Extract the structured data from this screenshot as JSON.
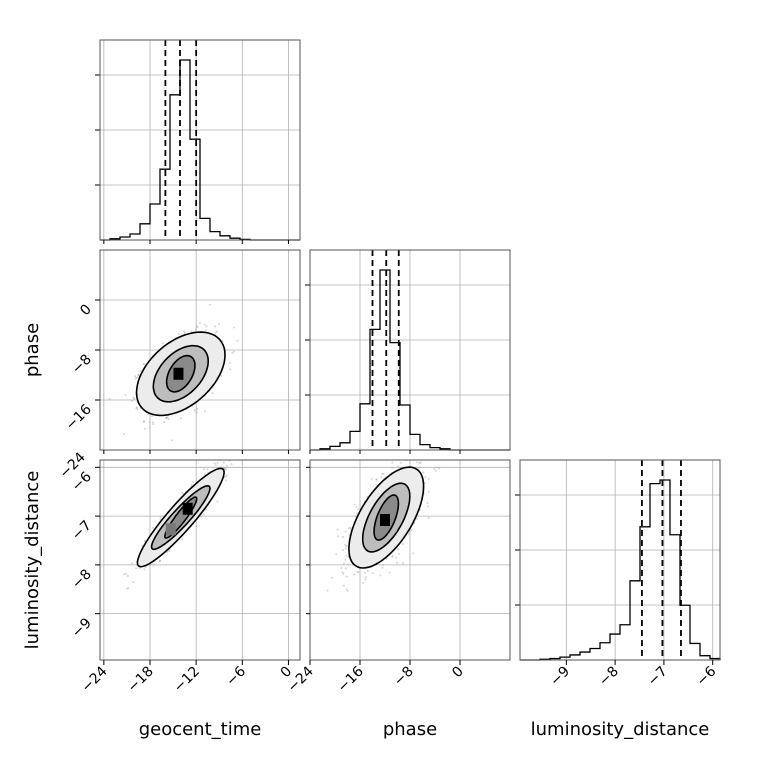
{
  "chart_data": {
    "type": "corner",
    "parameters": [
      "geocent_time",
      "phase",
      "luminosity_distance"
    ],
    "axis_labels": {
      "x": [
        "geocent_time",
        "phase",
        "luminosity_distance"
      ],
      "y": [
        "phase",
        "luminosity_distance"
      ]
    },
    "ranges": {
      "geocent_time": [
        -24.5,
        1.5
      ],
      "phase": [
        -24,
        8
      ],
      "luminosity_distance": [
        -9.95,
        -5.85
      ]
    },
    "ticks": {
      "geocent_time": [
        -24,
        -18,
        -12,
        -6,
        0
      ],
      "phase": [
        -24,
        -16,
        -8,
        0
      ],
      "luminosity_distance": [
        -9,
        -8,
        -7,
        -6
      ]
    },
    "tick_labels": {
      "geocent_time": [
        "−24",
        "−18",
        "−12",
        "−6",
        "0"
      ],
      "phase": [
        "−24",
        "−16",
        "−8",
        "0"
      ],
      "luminosity_distance": [
        "−9",
        "−8",
        "−7",
        "−6"
      ]
    },
    "y_tick_labels": {
      "phase": [
        "−16",
        "−8",
        "0"
      ],
      "luminosity_distance": [
        "−9",
        "−8",
        "−7",
        "−6"
      ],
      "phase_corner": "−24"
    },
    "grid": true,
    "line_color": "#000000",
    "scatter_color": "#888888",
    "quantiles": {
      "geocent_time": [
        -16.0,
        -14.1,
        -12.0
      ],
      "phase": [
        -14.0,
        -11.8,
        -9.8
      ],
      "luminosity_distance": [
        -7.45,
        -7.03,
        -6.65
      ]
    },
    "histograms": {
      "geocent_time": {
        "edges": [
          -24.5,
          -23.2,
          -21.9,
          -20.6,
          -19.3,
          -18.0,
          -16.7,
          -15.4,
          -14.1,
          -12.8,
          -11.5,
          -10.2,
          -8.9,
          -7.6,
          -6.3,
          -5.0,
          -3.7,
          -2.4,
          -1.1,
          0.2,
          1.5
        ],
        "counts": [
          0,
          2,
          5,
          10,
          27,
          60,
          118,
          242,
          300,
          168,
          36,
          14,
          7,
          3,
          1,
          0,
          0,
          0,
          0,
          0
        ]
      },
      "phase": {
        "edges": [
          -24,
          -22.4,
          -20.8,
          -19.2,
          -17.6,
          -16,
          -14.4,
          -12.8,
          -11.2,
          -9.6,
          -8,
          -6.4,
          -4.8,
          -3.2,
          -1.6,
          0,
          1.6,
          3.2,
          4.8,
          6.4,
          8
        ],
        "counts": [
          0,
          2,
          6,
          12,
          31,
          77,
          201,
          300,
          179,
          75,
          26,
          9,
          4,
          2,
          0,
          0,
          0,
          0,
          0,
          0
        ]
      },
      "luminosity_distance": {
        "edges": [
          -9.95,
          -9.745,
          -9.54,
          -9.335,
          -9.13,
          -8.925,
          -8.72,
          -8.515,
          -8.31,
          -8.105,
          -7.9,
          -7.695,
          -7.49,
          -7.285,
          -7.08,
          -6.875,
          -6.67,
          -6.465,
          -6.26,
          -6.055,
          -5.85
        ],
        "counts": [
          0,
          0,
          1,
          2,
          4,
          7,
          11,
          16,
          24,
          36,
          49,
          110,
          185,
          245,
          250,
          174,
          76,
          23,
          6,
          2
        ]
      }
    },
    "pairs": [
      {
        "x": "geocent_time",
        "y": "phase",
        "mean": [
          -14.0,
          -11.8
        ],
        "std": [
          2.3,
          2.9
        ],
        "corr": 0.45,
        "mode_bins": [
          {
            "x": -14.3,
            "y": -11.8,
            "shade": "#000000"
          }
        ],
        "contours": [
          {
            "level": 0.39,
            "sx": 0.8,
            "sy": 1.0,
            "fill": "#8a8a8a"
          },
          {
            "level": 0.86,
            "sx": 1.55,
            "sy": 1.55,
            "fill": "#bdbdbd"
          },
          {
            "level": 0.99,
            "sx": 2.5,
            "sy": 2.3,
            "fill": "#ececec"
          }
        ]
      },
      {
        "x": "geocent_time",
        "y": "luminosity_distance",
        "mean": [
          -14.0,
          -7.03
        ],
        "std": [
          2.3,
          0.42
        ],
        "corr": 0.92,
        "mode_bins": [
          {
            "x": -13.1,
            "y": -6.85,
            "shade": "#000000"
          },
          {
            "x": -15.3,
            "y": -7.27,
            "shade": "#777777"
          }
        ],
        "contours": [
          {
            "level": 0.39,
            "sx": 0.9,
            "sy": 1.0,
            "fill": "#8a8a8a"
          },
          {
            "level": 0.86,
            "sx": 1.65,
            "sy": 1.55,
            "fill": "#bdbdbd"
          },
          {
            "level": 0.99,
            "sx": 2.45,
            "sy": 2.4,
            "fill": "#ececec"
          }
        ]
      },
      {
        "x": "phase",
        "y": "luminosity_distance",
        "mean": [
          -11.8,
          -7.03
        ],
        "std": [
          2.6,
          0.44
        ],
        "corr": 0.62,
        "mode_bins": [
          {
            "x": -12.0,
            "y": -7.08,
            "shade": "#000000"
          }
        ],
        "contours": [
          {
            "level": 0.39,
            "sx": 0.75,
            "sy": 1.05,
            "fill": "#8a8a8a"
          },
          {
            "level": 0.86,
            "sx": 1.45,
            "sy": 1.6,
            "fill": "#bdbdbd"
          },
          {
            "level": 0.99,
            "sx": 2.3,
            "sy": 2.35,
            "fill": "#ececec"
          }
        ]
      }
    ]
  }
}
